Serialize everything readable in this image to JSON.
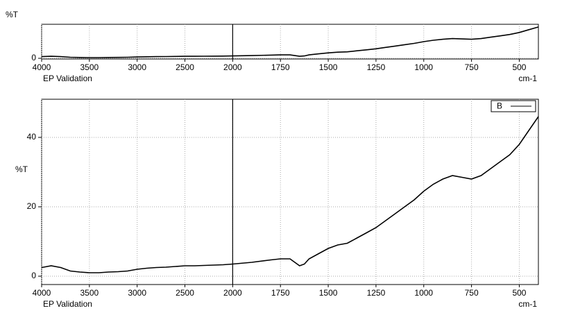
{
  "chart_data": [
    {
      "type": "line",
      "y_label": "%T",
      "x_label": "cm-1",
      "annotation": "EP Validation",
      "x": [
        4000,
        3900,
        3800,
        3700,
        3600,
        3500,
        3400,
        3300,
        3200,
        3100,
        3000,
        2900,
        2800,
        2700,
        2600,
        2500,
        2400,
        2300,
        2200,
        2100,
        2000,
        1900,
        1800,
        1750,
        1700,
        1675,
        1650,
        1625,
        1600,
        1550,
        1500,
        1450,
        1400,
        1350,
        1300,
        1250,
        1200,
        1150,
        1100,
        1050,
        1000,
        950,
        900,
        850,
        800,
        750,
        700,
        650,
        600,
        550,
        500,
        450,
        400
      ],
      "series": [
        {
          "color": "#000000",
          "values": [
            2.5,
            3,
            2.5,
            1.5,
            1.2,
            1,
            1,
            1.2,
            1.3,
            1.5,
            2,
            2.3,
            2.5,
            2.6,
            2.8,
            3,
            3,
            3.1,
            3.2,
            3.3,
            3.5,
            4,
            4.7,
            5,
            5,
            4,
            3,
            3.5,
            5,
            6.5,
            8,
            9,
            9.5,
            11,
            12.5,
            14,
            16,
            18,
            20,
            22,
            24.5,
            26.5,
            28,
            29,
            28.5,
            28,
            29,
            31,
            33,
            35,
            38,
            42,
            46
          ]
        }
      ],
      "xlim": [
        4000,
        400
      ],
      "xticks": [
        4000,
        3500,
        3000,
        2500,
        2000,
        1750,
        1500,
        1250,
        1000,
        750,
        500
      ],
      "xbreak": {
        "value": 2000,
        "factor": 2
      },
      "ylim": [
        -1,
        50
      ],
      "yticks": [
        0
      ],
      "grid": true
    },
    {
      "type": "line",
      "y_label": "%T",
      "x_label": "cm-1",
      "annotation": "EP Validation",
      "x": [
        4000,
        3900,
        3800,
        3700,
        3600,
        3500,
        3400,
        3300,
        3200,
        3100,
        3000,
        2900,
        2800,
        2700,
        2600,
        2500,
        2400,
        2300,
        2200,
        2100,
        2000,
        1900,
        1800,
        1750,
        1700,
        1675,
        1650,
        1625,
        1600,
        1550,
        1500,
        1450,
        1400,
        1350,
        1300,
        1250,
        1200,
        1150,
        1100,
        1050,
        1000,
        950,
        900,
        850,
        800,
        750,
        700,
        650,
        600,
        550,
        500,
        450,
        400
      ],
      "series": [
        {
          "name": "B",
          "color": "#000000",
          "values": [
            2.5,
            3,
            2.5,
            1.5,
            1.2,
            1,
            1,
            1.2,
            1.3,
            1.5,
            2,
            2.3,
            2.5,
            2.6,
            2.8,
            3,
            3,
            3.1,
            3.2,
            3.3,
            3.5,
            4,
            4.7,
            5,
            5,
            4,
            3,
            3.5,
            5,
            6.5,
            8,
            9,
            9.5,
            11,
            12.5,
            14,
            16,
            18,
            20,
            22,
            24.5,
            26.5,
            28,
            29,
            28.5,
            28,
            29,
            31,
            33,
            35,
            38,
            42,
            46
          ]
        }
      ],
      "xlim": [
        4000,
        400
      ],
      "xticks": [
        4000,
        3500,
        3000,
        2500,
        2000,
        1750,
        1500,
        1250,
        1000,
        750,
        500
      ],
      "xbreak": {
        "value": 2000,
        "factor": 2
      },
      "ylim": [
        -2.4,
        51
      ],
      "yticks": [
        0,
        20,
        40
      ],
      "grid": true,
      "legend": "upper right"
    }
  ]
}
